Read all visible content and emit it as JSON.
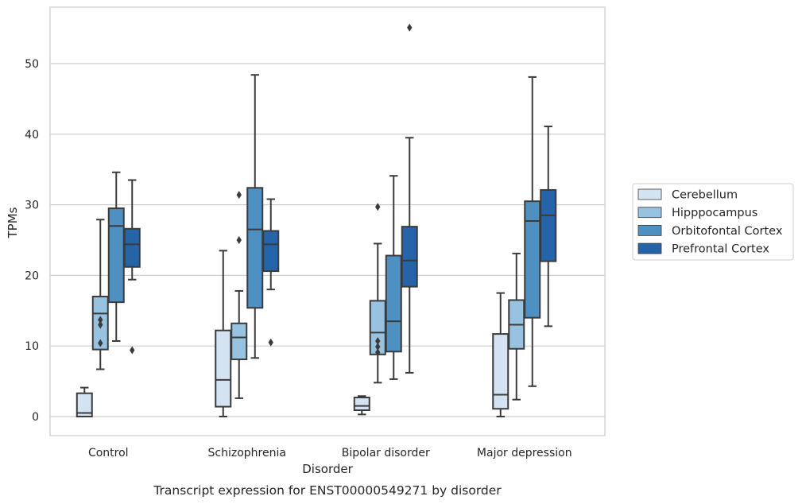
{
  "chart_data": {
    "type": "boxplot",
    "caption": "Transcript expression for ENST00000549271 by disorder",
    "xlabel": "Disorder",
    "ylabel": "TPMs",
    "ylim": [
      -2.5,
      58
    ],
    "yticks": [
      0,
      10,
      20,
      30,
      40,
      50
    ],
    "grid": "horizontal",
    "legend_position": "right",
    "categories": [
      "Control",
      "Schizophrenia",
      "Bipolar disorder",
      "Major depression"
    ],
    "series": [
      {
        "name": "Cerebellum",
        "color": "#d4e3f2",
        "boxes": [
          {
            "whisker_low": 0.0,
            "q1": 0.0,
            "median": 0.5,
            "q3": 3.3,
            "whisker_high": 4.1,
            "outliers": []
          },
          {
            "whisker_low": 0.0,
            "q1": 1.4,
            "median": 5.2,
            "q3": 12.2,
            "whisker_high": 23.5,
            "outliers": []
          },
          {
            "whisker_low": 0.3,
            "q1": 0.9,
            "median": 1.5,
            "q3": 2.7,
            "whisker_high": 2.9,
            "outliers": []
          },
          {
            "whisker_low": 0.0,
            "q1": 1.1,
            "median": 3.1,
            "q3": 11.7,
            "whisker_high": 17.5,
            "outliers": []
          }
        ]
      },
      {
        "name": "Hipppocampus",
        "color": "#98c3e0",
        "boxes": [
          {
            "whisker_low": 6.7,
            "q1": 9.5,
            "median": 14.6,
            "q3": 17.0,
            "whisker_high": 27.9,
            "outliers": [
              13.7,
              13.0,
              10.4
            ]
          },
          {
            "whisker_low": 2.6,
            "q1": 8.1,
            "median": 11.2,
            "q3": 13.2,
            "whisker_high": 17.8,
            "outliers": [
              31.4,
              25.0
            ]
          },
          {
            "whisker_low": 4.8,
            "q1": 8.8,
            "median": 11.9,
            "q3": 16.4,
            "whisker_high": 24.5,
            "outliers": [
              29.7,
              10.7,
              9.9,
              9.1
            ]
          },
          {
            "whisker_low": 2.4,
            "q1": 9.6,
            "median": 13.0,
            "q3": 16.5,
            "whisker_high": 23.1,
            "outliers": []
          }
        ]
      },
      {
        "name": "Orbitofontal Cortex",
        "color": "#4f90c2",
        "boxes": [
          {
            "whisker_low": 10.7,
            "q1": 16.2,
            "median": 27.0,
            "q3": 29.5,
            "whisker_high": 34.6,
            "outliers": []
          },
          {
            "whisker_low": 8.3,
            "q1": 15.4,
            "median": 26.5,
            "q3": 32.4,
            "whisker_high": 48.4,
            "outliers": []
          },
          {
            "whisker_low": 5.3,
            "q1": 9.2,
            "median": 13.5,
            "q3": 22.8,
            "whisker_high": 34.1,
            "outliers": []
          },
          {
            "whisker_low": 4.3,
            "q1": 14.0,
            "median": 27.7,
            "q3": 30.5,
            "whisker_high": 48.1,
            "outliers": []
          }
        ]
      },
      {
        "name": "Prefrontal Cortex",
        "color": "#2564a8",
        "boxes": [
          {
            "whisker_low": 19.4,
            "q1": 21.2,
            "median": 24.4,
            "q3": 26.6,
            "whisker_high": 33.5,
            "outliers": [
              9.4
            ]
          },
          {
            "whisker_low": 18.0,
            "q1": 20.6,
            "median": 24.4,
            "q3": 26.3,
            "whisker_high": 30.8,
            "outliers": [
              10.5
            ]
          },
          {
            "whisker_low": 6.2,
            "q1": 18.4,
            "median": 22.1,
            "q3": 26.9,
            "whisker_high": 39.5,
            "outliers": [
              55.1
            ]
          },
          {
            "whisker_low": 12.8,
            "q1": 22.0,
            "median": 28.5,
            "q3": 32.1,
            "whisker_high": 41.1,
            "outliers": []
          }
        ]
      }
    ]
  }
}
